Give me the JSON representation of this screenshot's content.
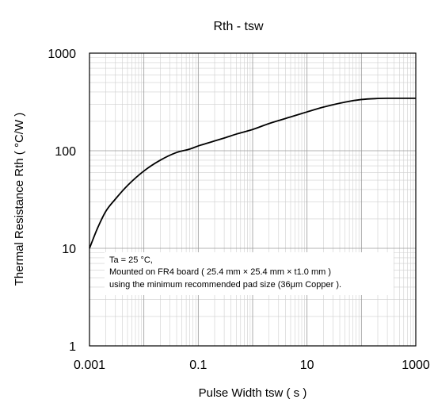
{
  "chart_data": {
    "type": "line",
    "title": "Rth - tsw",
    "xlabel": "Pulse Width tsw ( s )",
    "ylabel": "Thermal Resistance Rth ( °C/W )",
    "xscale": "log",
    "yscale": "log",
    "xlim": [
      0.001,
      1000
    ],
    "ylim": [
      1,
      1000
    ],
    "grid": true,
    "x_ticks": [
      "0.001",
      "0.1",
      "10",
      "1000"
    ],
    "y_ticks": [
      "1",
      "10",
      "100",
      "1000"
    ],
    "series": [
      {
        "color": "#000000",
        "x": [
          0.001,
          0.0014,
          0.002,
          0.003,
          0.005,
          0.01,
          0.02,
          0.04,
          0.07,
          0.1,
          0.15,
          0.2,
          0.3,
          0.5,
          1,
          2,
          5,
          10,
          20,
          50,
          100,
          200,
          300,
          500,
          1000
        ],
        "y": [
          10,
          16,
          24,
          32,
          44,
          62,
          80,
          96,
          104,
          112,
          120,
          126,
          135,
          148,
          165,
          190,
          222,
          250,
          280,
          315,
          335,
          343,
          345,
          345,
          345
        ]
      }
    ],
    "annotation": [
      "Ta = 25 °C,",
      "Mounted on FR4 board ( 25.4 mm × 25.4 mm × t1.0 mm )",
      "using the minimum recommended pad size (36μm Copper )."
    ]
  }
}
